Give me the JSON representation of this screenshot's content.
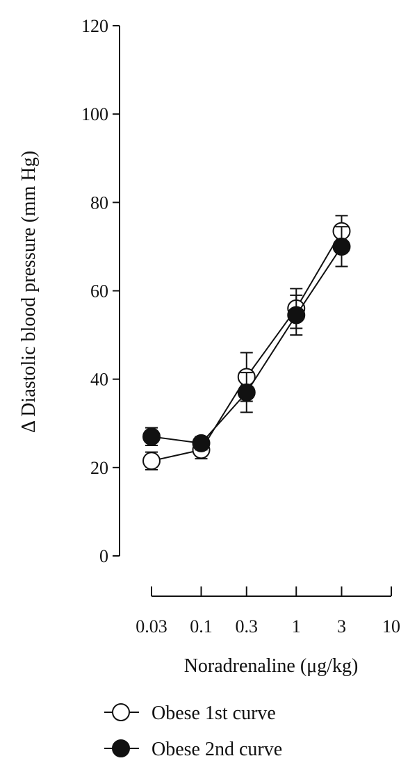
{
  "chart_data": {
    "type": "line",
    "title": "",
    "xlabel": "Noradrenaline (μg/kg)",
    "ylabel": "Δ Diastolic blood pressure (mm Hg)",
    "x_scale": "log",
    "x_ticks": [
      "0.03",
      "0.1",
      "0.3",
      "1",
      "3",
      "10"
    ],
    "y_ticks": [
      "0",
      "20",
      "40",
      "60",
      "80",
      "100",
      "120"
    ],
    "ylim": [
      0,
      120
    ],
    "xlim": [
      0.03,
      10
    ],
    "legend_position": "bottom",
    "series": [
      {
        "name": "Obese 1st curve",
        "marker": "open-circle",
        "x": [
          0.03,
          0.1,
          0.3,
          1,
          3
        ],
        "y": [
          21.5,
          24,
          40.5,
          56,
          73.5
        ],
        "error": [
          2,
          2,
          5.5,
          4.5,
          3.5
        ]
      },
      {
        "name": "Obese 2nd curve",
        "marker": "filled-circle",
        "x": [
          0.03,
          0.1,
          0.3,
          1,
          3
        ],
        "y": [
          27,
          25.5,
          37,
          54.5,
          70
        ],
        "error": [
          2,
          1.5,
          4.5,
          4.5,
          4.5
        ]
      }
    ]
  }
}
